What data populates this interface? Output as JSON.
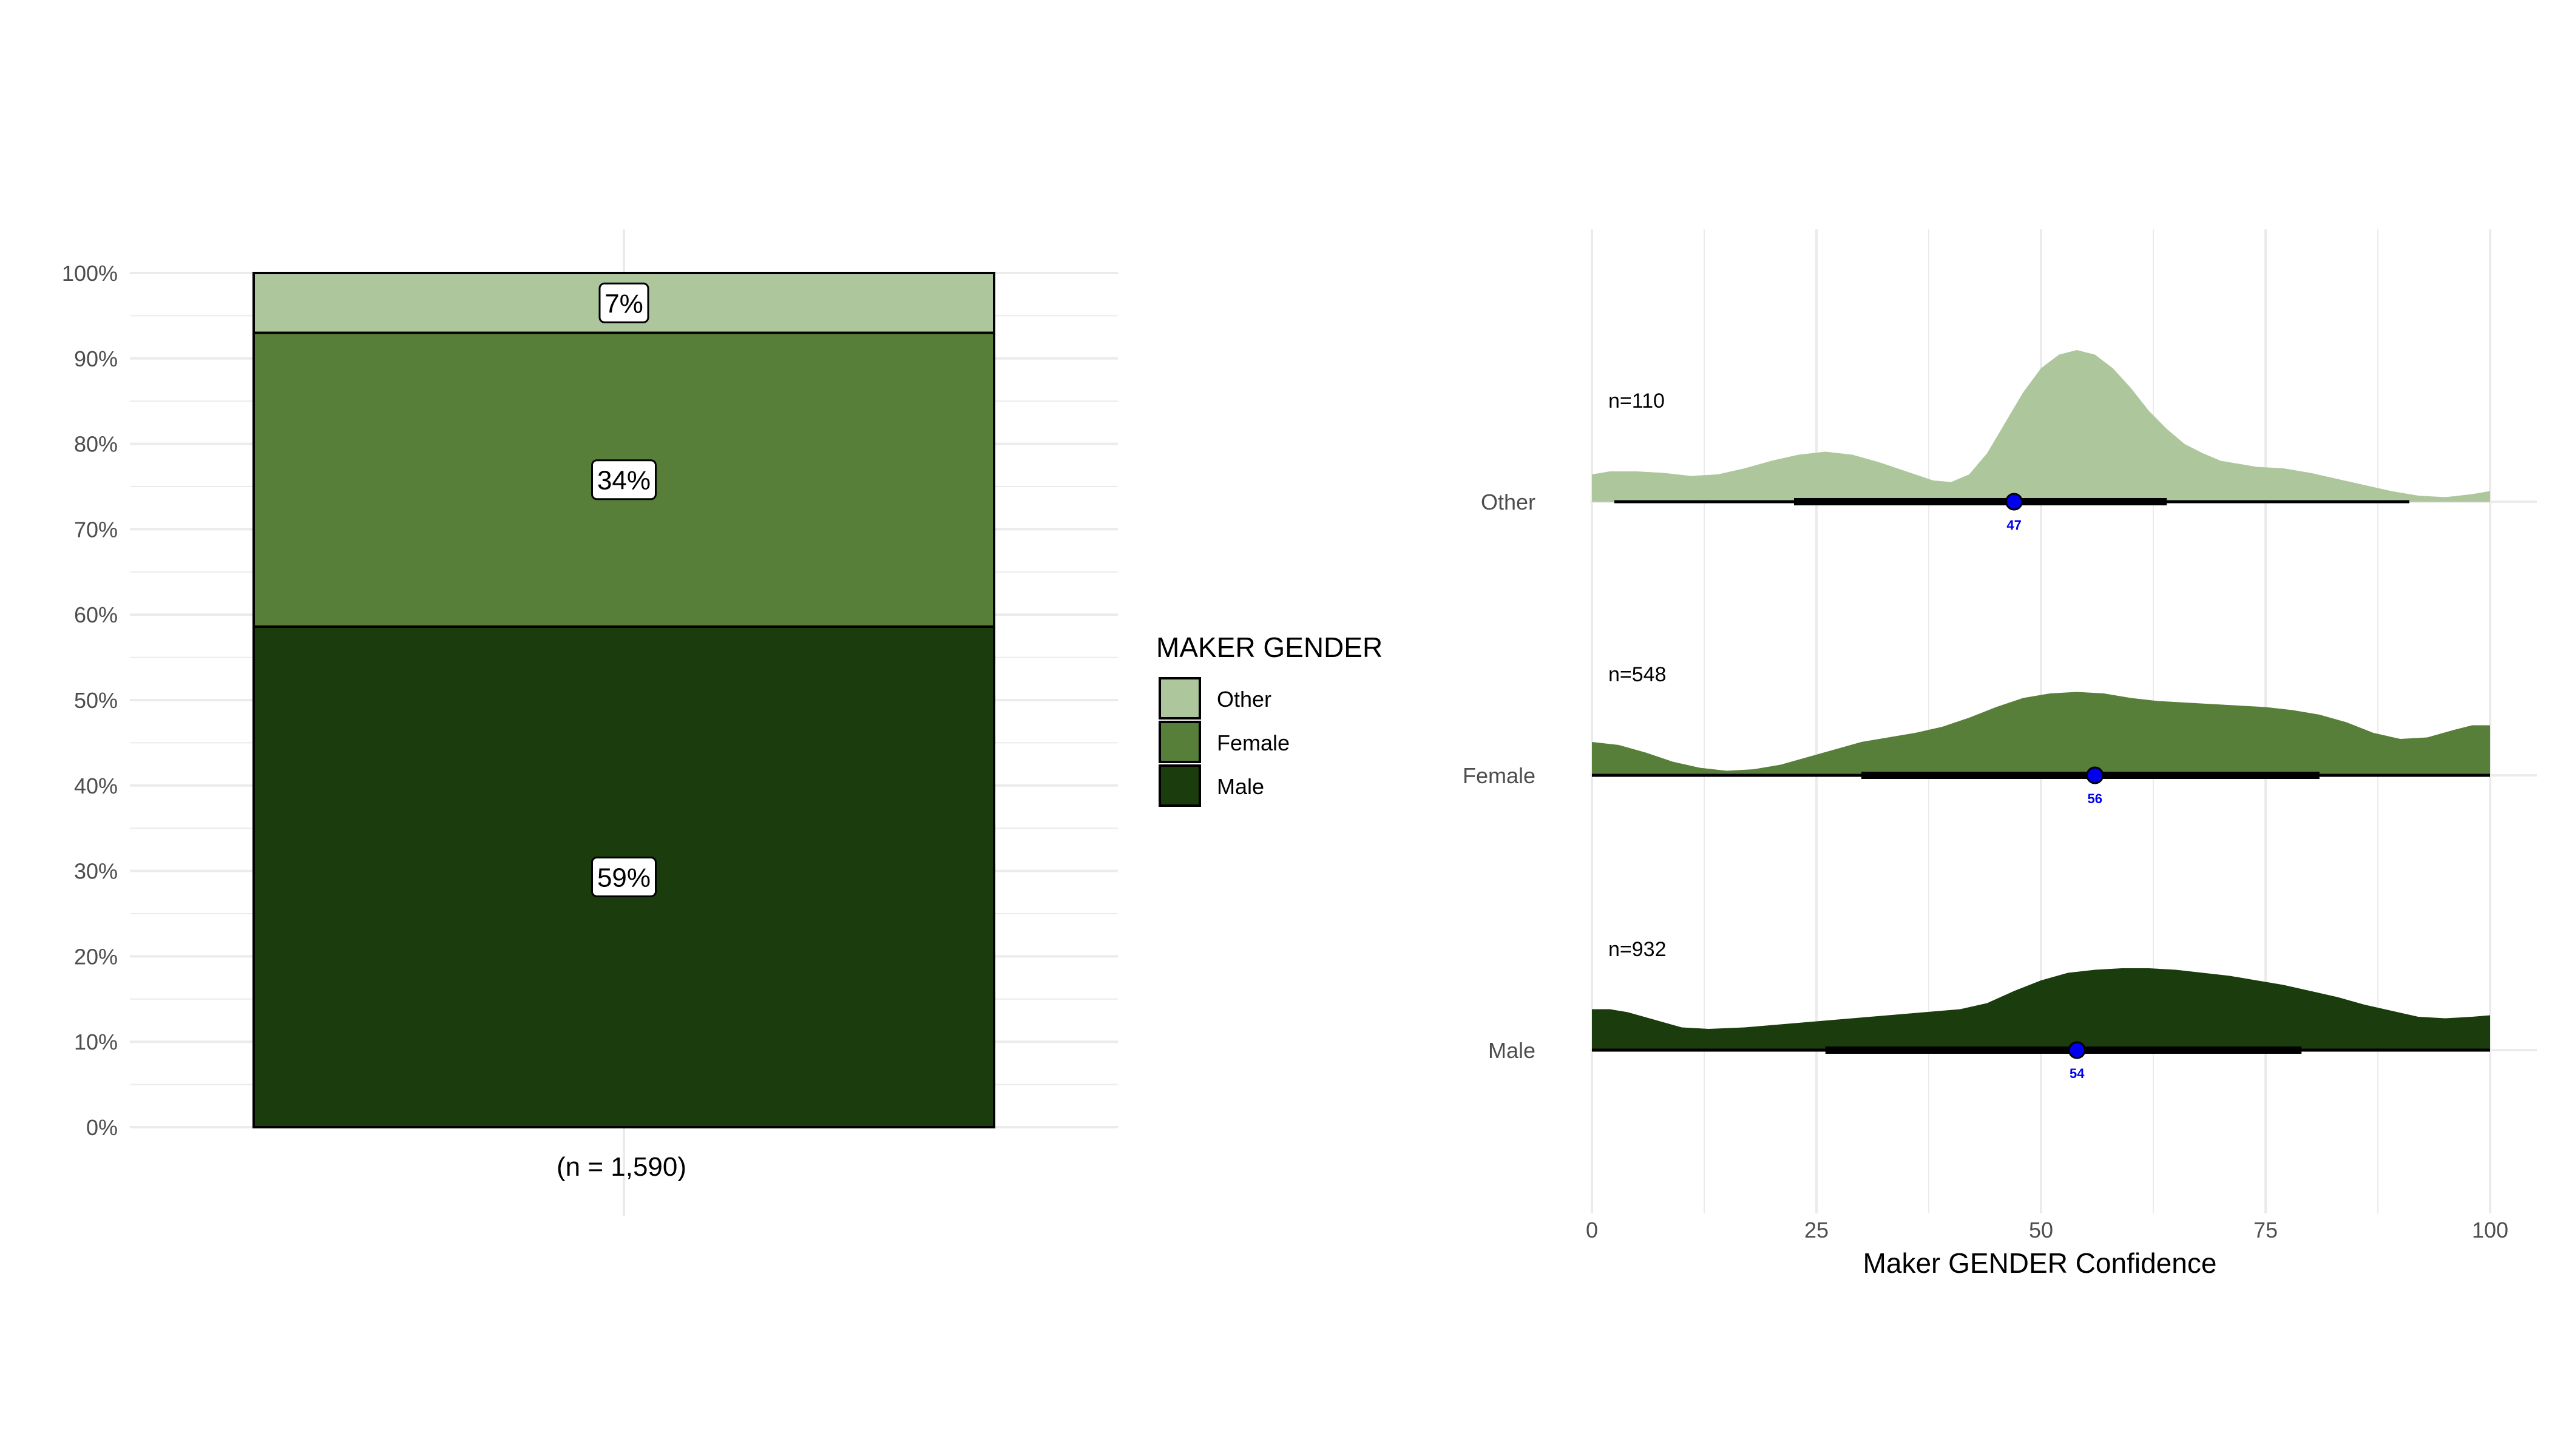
{
  "colors": {
    "other": "#adc69c",
    "female": "#587f39",
    "male": "#1b3c0c",
    "grid": "#ebebeb",
    "text": "#4d4d4d",
    "median_point": "#0000ee"
  },
  "legend": {
    "title": "MAKER GENDER",
    "placement": "between-panels",
    "items": [
      {
        "label": "Other",
        "color": "#adc69c"
      },
      {
        "label": "Female",
        "color": "#587f39"
      },
      {
        "label": "Male",
        "color": "#1b3c0c"
      }
    ]
  },
  "chart_data": [
    {
      "type": "bar",
      "stacked": true,
      "categories": [
        "(n = 1,590)"
      ],
      "series": [
        {
          "name": "Male",
          "values": [
            58.6
          ],
          "label": "59%"
        },
        {
          "name": "Female",
          "values": [
            34.4
          ],
          "label": "34%"
        },
        {
          "name": "Other",
          "values": [
            7.0
          ],
          "label": "7%"
        }
      ],
      "xlabel": "(n = 1,590)",
      "ylabel": "",
      "ylim": [
        0,
        100
      ],
      "yticks": [
        "0%",
        "10%",
        "20%",
        "30%",
        "40%",
        "50%",
        "60%",
        "70%",
        "80%",
        "90%",
        "100%"
      ],
      "grid": true
    },
    {
      "type": "area",
      "subtype": "half-eye density with interval",
      "xlabel": "Maker GENDER Confidence",
      "ylabel": "",
      "xlim": [
        0,
        100
      ],
      "xticks": [
        "0",
        "25",
        "50",
        "75",
        "100"
      ],
      "grid": true,
      "categories": [
        "Other",
        "Female",
        "Male"
      ],
      "series": [
        {
          "name": "Other",
          "count_label": "n=110",
          "median": 47,
          "median_label": "47",
          "interval_66": [
            22.5,
            64
          ],
          "interval_95": [
            2.5,
            91
          ],
          "density": [
            [
              0,
              0.18
            ],
            [
              2,
              0.2
            ],
            [
              5,
              0.2
            ],
            [
              8,
              0.19
            ],
            [
              11,
              0.17
            ],
            [
              14,
              0.18
            ],
            [
              17,
              0.22
            ],
            [
              20,
              0.27
            ],
            [
              23,
              0.31
            ],
            [
              26,
              0.33
            ],
            [
              29,
              0.31
            ],
            [
              32,
              0.26
            ],
            [
              35,
              0.2
            ],
            [
              38,
              0.14
            ],
            [
              40,
              0.13
            ],
            [
              42,
              0.18
            ],
            [
              44,
              0.32
            ],
            [
              46,
              0.52
            ],
            [
              48,
              0.72
            ],
            [
              50,
              0.88
            ],
            [
              52,
              0.97
            ],
            [
              54,
              1.0
            ],
            [
              56,
              0.97
            ],
            [
              58,
              0.88
            ],
            [
              60,
              0.75
            ],
            [
              62,
              0.6
            ],
            [
              64,
              0.48
            ],
            [
              66,
              0.38
            ],
            [
              68,
              0.32
            ],
            [
              70,
              0.27
            ],
            [
              74,
              0.23
            ],
            [
              77,
              0.22
            ],
            [
              80,
              0.19
            ],
            [
              83,
              0.15
            ],
            [
              86,
              0.11
            ],
            [
              89,
              0.07
            ],
            [
              92,
              0.04
            ],
            [
              95,
              0.03
            ],
            [
              98,
              0.05
            ],
            [
              100,
              0.07
            ]
          ]
        },
        {
          "name": "Female",
          "count_label": "n=548",
          "median": 56,
          "median_label": "56",
          "interval_66": [
            30,
            81
          ],
          "interval_95": [
            0,
            100
          ],
          "density": [
            [
              0,
              0.22
            ],
            [
              3,
              0.2
            ],
            [
              6,
              0.15
            ],
            [
              9,
              0.09
            ],
            [
              12,
              0.05
            ],
            [
              15,
              0.03
            ],
            [
              18,
              0.04
            ],
            [
              21,
              0.07
            ],
            [
              24,
              0.12
            ],
            [
              27,
              0.17
            ],
            [
              30,
              0.22
            ],
            [
              33,
              0.25
            ],
            [
              36,
              0.28
            ],
            [
              39,
              0.32
            ],
            [
              42,
              0.38
            ],
            [
              45,
              0.45
            ],
            [
              48,
              0.51
            ],
            [
              51,
              0.54
            ],
            [
              54,
              0.55
            ],
            [
              57,
              0.54
            ],
            [
              60,
              0.51
            ],
            [
              63,
              0.49
            ],
            [
              66,
              0.48
            ],
            [
              69,
              0.47
            ],
            [
              72,
              0.46
            ],
            [
              75,
              0.45
            ],
            [
              78,
              0.43
            ],
            [
              81,
              0.4
            ],
            [
              84,
              0.35
            ],
            [
              87,
              0.28
            ],
            [
              90,
              0.24
            ],
            [
              93,
              0.25
            ],
            [
              96,
              0.3
            ],
            [
              98,
              0.33
            ],
            [
              100,
              0.33
            ]
          ]
        },
        {
          "name": "Male",
          "count_label": "n=932",
          "median": 54,
          "median_label": "54",
          "interval_66": [
            26,
            79
          ],
          "interval_95": [
            0,
            100
          ],
          "density": [
            [
              0,
              0.27
            ],
            [
              2,
              0.27
            ],
            [
              4,
              0.25
            ],
            [
              7,
              0.2
            ],
            [
              10,
              0.15
            ],
            [
              13,
              0.14
            ],
            [
              17,
              0.15
            ],
            [
              21,
              0.17
            ],
            [
              25,
              0.19
            ],
            [
              29,
              0.21
            ],
            [
              33,
              0.23
            ],
            [
              37,
              0.25
            ],
            [
              41,
              0.27
            ],
            [
              44,
              0.31
            ],
            [
              47,
              0.39
            ],
            [
              50,
              0.46
            ],
            [
              53,
              0.51
            ],
            [
              56,
              0.53
            ],
            [
              59,
              0.54
            ],
            [
              62,
              0.54
            ],
            [
              65,
              0.53
            ],
            [
              68,
              0.51
            ],
            [
              71,
              0.49
            ],
            [
              74,
              0.46
            ],
            [
              77,
              0.43
            ],
            [
              80,
              0.39
            ],
            [
              83,
              0.35
            ],
            [
              86,
              0.3
            ],
            [
              89,
              0.26
            ],
            [
              92,
              0.22
            ],
            [
              95,
              0.21
            ],
            [
              98,
              0.22
            ],
            [
              100,
              0.23
            ]
          ]
        }
      ]
    }
  ]
}
